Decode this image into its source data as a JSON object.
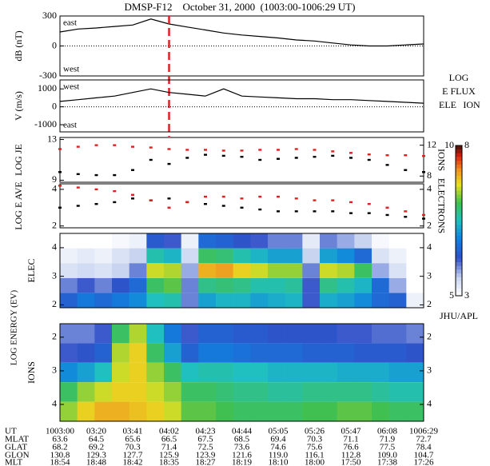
{
  "chart_data": [
    {
      "type": "line",
      "title": "DMSP-F12    October 31, 2000  (1003:00-1006:29 UT)",
      "categories": [
        "1003:00",
        null,
        "03:20",
        null,
        "03:41",
        null,
        "04:02",
        null,
        "04:23",
        null,
        "04:44",
        null,
        "05:05",
        null,
        "05:26",
        null,
        "05:47",
        null,
        "06:08",
        null,
        "1006:29"
      ],
      "ylabel": "dB (nT)",
      "annotations": [
        "east",
        "west"
      ],
      "series": [
        {
          "color": "#000000",
          "values": [
            140,
            170,
            180,
            195,
            210,
            270,
            220,
            190,
            160,
            130,
            110,
            95,
            80,
            60,
            50,
            30,
            10,
            0,
            0,
            10,
            20
          ]
        }
      ],
      "ylim": [
        -300,
        300
      ],
      "yticks": [
        -300,
        0,
        300
      ],
      "marker": "04:02",
      "marker_color": "#e02020"
    },
    {
      "type": "line",
      "ylabel": "V (m/s)",
      "annotations": [
        "west",
        "east"
      ],
      "series": [
        {
          "color": "#000000",
          "values": [
            300,
            400,
            500,
            600,
            800,
            1000,
            800,
            700,
            600,
            1000,
            600,
            550,
            500,
            450,
            450,
            400,
            400,
            350,
            300,
            250,
            200
          ]
        }
      ],
      "ylim": [
        -1400,
        1500
      ],
      "yticks": [
        -1000,
        0,
        1000
      ]
    },
    {
      "type": "scatter",
      "ylabel": "LOG JE",
      "y2label": "IONS",
      "series": [
        {
          "color": "#000000",
          "values": [
            9.8,
            9.6,
            9.5,
            9.5,
            10,
            11,
            10.6,
            11.2,
            11.5,
            11.4,
            11.3,
            11,
            11.1,
            11.2,
            11.3,
            11.4,
            11.2,
            11,
            10.5,
            10,
            9.8
          ]
        },
        {
          "color": "#e02020",
          "axis": "y2",
          "values": [
            11.5,
            11.8,
            12,
            12,
            11.8,
            11.7,
            11.5,
            11.4,
            11.4,
            11.3,
            11.3,
            11.4,
            11.4,
            11.5,
            11.4,
            11.2,
            11,
            10.8,
            10.7,
            10.7,
            10.6
          ]
        }
      ],
      "ylim": [
        8.8,
        13.2
      ],
      "yticks": [
        9,
        13
      ],
      "y2lim": [
        7.2,
        13
      ],
      "y2ticks": [
        8,
        12
      ]
    },
    {
      "type": "scatter",
      "ylabel": "LOG E AVE",
      "y2label": "ELECTRONS",
      "series": [
        {
          "color": "#000000",
          "values": [
            3,
            3.1,
            3.2,
            3.3,
            3.5,
            3.4,
            3.5,
            3.3,
            3.2,
            3.1,
            3,
            2.9,
            2.8,
            2.8,
            2.8,
            2.8,
            2.7,
            2.7,
            2.6,
            2.5,
            2.4
          ]
        },
        {
          "color": "#e02020",
          "axis": "y2",
          "values": [
            4.2,
            4.1,
            4,
            3.9,
            3.7,
            3.4,
            3,
            3.3,
            3.6,
            3.6,
            3.5,
            3.6,
            3.6,
            3.5,
            3.4,
            3.4,
            3.3,
            3.2,
            3,
            2.8,
            2.6
          ]
        }
      ],
      "ylim": [
        1.9,
        4.3
      ],
      "yticks": [
        2,
        4
      ],
      "y2lim": [
        1.9,
        4.3
      ],
      "y2ticks": [
        2,
        4
      ]
    },
    {
      "type": "heatmap",
      "ylabel": "ELEC",
      "scale": "ele",
      "inverted": false,
      "ybins": [
        1.9,
        2.42,
        2.94,
        3.46,
        3.98,
        4.5
      ],
      "z": [
        [
          6.5,
          6.8,
          6.6,
          6.8,
          7,
          7.5,
          7.6,
          6,
          7.2,
          7.4,
          7.4,
          7.2,
          7.3,
          7.4,
          6.2,
          7.3,
          7.2,
          7,
          6.6,
          6.5,
          5.2
        ],
        [
          6,
          6.2,
          6,
          6.3,
          6.6,
          8,
          8.2,
          6,
          7.8,
          7.9,
          7.8,
          7.6,
          7.6,
          7.7,
          6.2,
          7.8,
          7.6,
          7.4,
          6.6,
          5.8,
          5
        ],
        [
          5.4,
          5.5,
          5.4,
          5.6,
          6,
          8.6,
          8.5,
          5.8,
          9,
          9.1,
          8.8,
          8.6,
          8.4,
          8.4,
          6,
          8.6,
          8.5,
          8,
          5.8,
          5.4,
          5
        ],
        [
          5.2,
          5.3,
          5.2,
          5.4,
          5.6,
          7.6,
          7.4,
          5.5,
          8,
          7.9,
          7.6,
          7.4,
          7.2,
          7.2,
          5.6,
          7.2,
          7,
          6.6,
          5.4,
          5.2,
          5
        ],
        [
          5,
          5,
          5,
          5.1,
          5.2,
          6.4,
          6.2,
          5.2,
          6.6,
          6.5,
          6.3,
          6.2,
          6,
          6,
          5.3,
          6,
          5.8,
          5.6,
          5.1,
          5,
          5
        ]
      ],
      "ylim": [
        1.9,
        4.5
      ],
      "yticks": [
        2,
        3,
        4
      ]
    },
    {
      "type": "heatmap",
      "ylabel": "IONS",
      "scale": "ion",
      "inverted": true,
      "ybins": [
        1.6,
        2.18,
        2.76,
        3.34,
        3.92,
        4.5
      ],
      "z": [
        [
          4,
          4,
          4.2,
          6,
          6.5,
          5.5,
          4.8,
          4.2,
          4.5,
          4.5,
          4.4,
          4.4,
          4.3,
          4.3,
          4.3,
          4.3,
          4.2,
          4.2,
          4.1,
          4.1,
          4
        ],
        [
          4.2,
          4.3,
          4.5,
          6.5,
          6.8,
          6,
          5.2,
          4.5,
          4.8,
          4.8,
          4.7,
          4.6,
          4.6,
          4.6,
          4.5,
          4.5,
          4.5,
          4.4,
          4.4,
          4.4,
          4.3
        ],
        [
          5,
          5.2,
          5.5,
          6.6,
          6.8,
          6.4,
          6,
          5.5,
          5.6,
          5.6,
          5.5,
          5.5,
          5.4,
          5.4,
          5.4,
          5.4,
          5.3,
          5.3,
          5.3,
          5.2,
          5.2
        ],
        [
          6,
          6.4,
          6.6,
          6.8,
          6.8,
          6.6,
          6.4,
          6,
          6,
          5.9,
          5.8,
          5.8,
          5.7,
          5.7,
          5.8,
          5.8,
          5.8,
          5.8,
          5.7,
          5.6,
          5.6
        ],
        [
          6.4,
          6.8,
          7,
          7,
          6.9,
          6.8,
          6.6,
          6.2,
          6.2,
          6.1,
          6,
          6,
          6,
          6,
          6.1,
          6.1,
          6.2,
          6.2,
          6.1,
          6,
          6
        ]
      ],
      "ylim": [
        1.6,
        4.5
      ],
      "yticks": [
        2,
        3,
        4
      ]
    }
  ],
  "shared_ylabel": "LOG ENERGY (EV)",
  "colorbar": {
    "title": [
      "LOG",
      "E FLUX"
    ],
    "ele_label": "ELE",
    "ion_label": "ION",
    "ele_ticks": [
      5,
      10
    ],
    "ion_ticks": [
      3,
      8
    ],
    "credit": "JHU/APL"
  },
  "footer": {
    "ut_label": "UT",
    "rows": [
      {
        "label": "MLAT",
        "values": [
          "63.6",
          "64.5",
          "65.6",
          "66.5",
          "67.5",
          "68.5",
          "69.4",
          "70.3",
          "71.1",
          "71.9",
          "72.7"
        ]
      },
      {
        "label": "GLAT",
        "values": [
          "68.2",
          "69.2",
          "70.3",
          "71.4",
          "72.5",
          "73.6",
          "74.6",
          "75.6",
          "76.6",
          "77.5",
          "78.4"
        ]
      },
      {
        "label": "GLON",
        "values": [
          "130.8",
          "129.3",
          "127.7",
          "125.9",
          "123.9",
          "121.6",
          "119.0",
          "116.1",
          "112.8",
          "109.0",
          "104.7"
        ]
      },
      {
        "label": "MLT",
        "values": [
          "18:54",
          "18:48",
          "18:42",
          "18:35",
          "18:27",
          "18:19",
          "18:10",
          "18:00",
          "17:50",
          "17:38",
          "17:26"
        ]
      }
    ]
  }
}
